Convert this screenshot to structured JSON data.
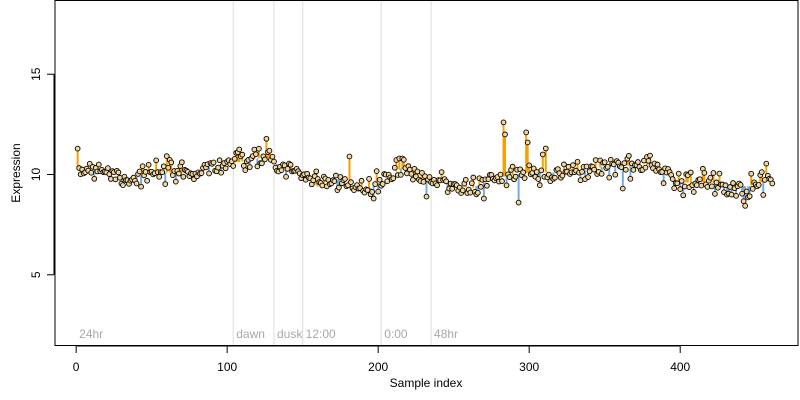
{
  "chart_data": {
    "type": "scatter",
    "title": "",
    "xlabel": "Sample index",
    "ylabel": "Expression",
    "xlim": [
      -14,
      478
    ],
    "ylim": [
      1.5,
      18.7
    ],
    "xticks": [
      "0",
      "100",
      "200",
      "300",
      "400"
    ],
    "xtick_values": [
      0,
      100,
      200,
      300,
      400
    ],
    "yticks": [
      "5",
      "10",
      "15"
    ],
    "ytick_values": [
      5,
      10,
      15
    ],
    "grid": false,
    "phase_markers": [
      {
        "label": "24hr",
        "x": 2
      },
      {
        "label": "dawn",
        "x": 106
      },
      {
        "label": "dusk",
        "x": 133
      },
      {
        "label": "12:00",
        "x": 152
      },
      {
        "label": "0:00",
        "x": 204
      },
      {
        "label": "48hr",
        "x": 237
      }
    ],
    "colors": {
      "point_fill": "#f4d69a",
      "point_stroke": "#000000",
      "segment_up": "#f5a200",
      "segment_down": "#7aa9dd",
      "divider": "#dddddd",
      "phase_text": "#a8a8a8"
    },
    "series": [
      {
        "x_start": 1,
        "x_step": 1,
        "baseline": [
          {
            "x": 1,
            "y": 10.2
          },
          {
            "x": 15,
            "y": 10.4
          },
          {
            "x": 25,
            "y": 10.0
          },
          {
            "x": 35,
            "y": 9.8
          },
          {
            "x": 55,
            "y": 10.1
          },
          {
            "x": 75,
            "y": 10.1
          },
          {
            "x": 95,
            "y": 10.5
          },
          {
            "x": 115,
            "y": 10.7
          },
          {
            "x": 125,
            "y": 10.9
          },
          {
            "x": 140,
            "y": 10.2
          },
          {
            "x": 150,
            "y": 10.1
          },
          {
            "x": 160,
            "y": 9.4
          },
          {
            "x": 175,
            "y": 9.8
          },
          {
            "x": 190,
            "y": 9.1
          },
          {
            "x": 205,
            "y": 9.8
          },
          {
            "x": 215,
            "y": 10.3
          },
          {
            "x": 230,
            "y": 9.7
          },
          {
            "x": 245,
            "y": 9.6
          },
          {
            "x": 262,
            "y": 9.3
          },
          {
            "x": 275,
            "y": 9.8
          },
          {
            "x": 300,
            "y": 10.1
          },
          {
            "x": 330,
            "y": 10.1
          },
          {
            "x": 350,
            "y": 10.4
          },
          {
            "x": 385,
            "y": 10.5
          },
          {
            "x": 400,
            "y": 9.6
          },
          {
            "x": 420,
            "y": 9.6
          },
          {
            "x": 445,
            "y": 9.4
          },
          {
            "x": 462,
            "y": 9.8
          }
        ],
        "peaks": [
          {
            "x": 283,
            "y": 12.6
          },
          {
            "x": 284,
            "y": 12.0
          },
          {
            "x": 298,
            "y": 12.1
          },
          {
            "x": 299,
            "y": 11.6
          },
          {
            "x": 309,
            "y": 11.0
          },
          {
            "x": 311,
            "y": 11.3
          },
          {
            "x": 181,
            "y": 10.9
          },
          {
            "x": 214,
            "y": 10.8
          }
        ],
        "troughs": [
          {
            "x": 232,
            "y": 8.9
          },
          {
            "x": 270,
            "y": 8.8
          },
          {
            "x": 293,
            "y": 8.6
          },
          {
            "x": 197,
            "y": 8.8
          },
          {
            "x": 362,
            "y": 9.3
          },
          {
            "x": 431,
            "y": 9.0
          },
          {
            "x": 434,
            "y": 9.0
          }
        ],
        "noise_sd": 0.28
      }
    ]
  }
}
